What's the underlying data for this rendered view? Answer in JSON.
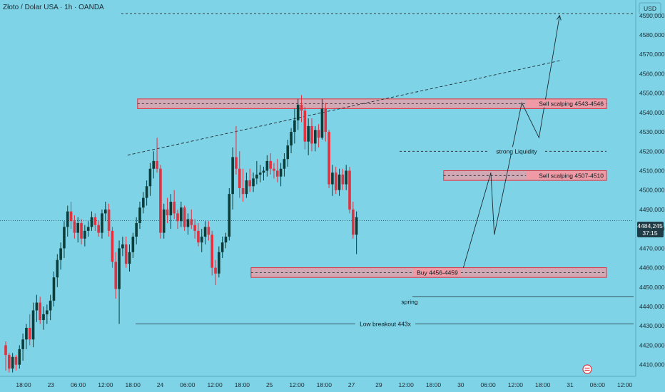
{
  "header": {
    "symbol_title": "Złoto / Dolar USA · 1h · OANDA",
    "currency": "USD"
  },
  "price_badge": {
    "price": "4484,245",
    "countdown": "37:15"
  },
  "colors": {
    "background": "#7fd3e6",
    "bull": "#0b3d3a",
    "bear": "#e2313f",
    "zone_fill": "#ef9aa4",
    "zone_stroke": "#e2313f",
    "annotation_line": "#1c2b33",
    "price_badge": "#1f3b45"
  },
  "chart_data": {
    "type": "candlestick",
    "title": "Złoto / Dolar USA · 1h · OANDA",
    "ylim": [
      4404,
      4598
    ],
    "y_ticks": [
      4410,
      4420,
      4430,
      4440,
      4450,
      4460,
      4470,
      4480,
      4490,
      4500,
      4510,
      4520,
      4530,
      4540,
      4550,
      4560,
      4570,
      4580,
      4590
    ],
    "y_tick_labels": [
      "4410,000",
      "4420,000",
      "4430,000",
      "4440,000",
      "4450,000",
      "4460,000",
      "4470,000",
      "4480,000",
      "4490,000",
      "4500,000",
      "4510,000",
      "4520,000",
      "4530,000",
      "4540,000",
      "4550,000",
      "4560,000",
      "4570,000",
      "4580,000",
      "4590,000"
    ],
    "x_tick_labels": [
      "18:00",
      "23",
      "06:00",
      "12:00",
      "18:00",
      "24",
      "06:00",
      "12:00",
      "18:00",
      "25",
      "12:00",
      "18:00",
      "27",
      "29",
      "12:00",
      "18:00",
      "30",
      "06:00",
      "12:00",
      "18:00",
      "31",
      "06:00",
      "12:00"
    ],
    "last_price": 4484.245,
    "candles": [
      [
        4420,
        4422,
        4407,
        4415
      ],
      [
        4415,
        4416,
        4406,
        4408
      ],
      [
        4408,
        4416,
        4406,
        4414
      ],
      [
        4414,
        4415,
        4407,
        4410
      ],
      [
        4410,
        4420,
        4408,
        4418
      ],
      [
        4418,
        4426,
        4412,
        4423
      ],
      [
        4423,
        4431,
        4418,
        4429
      ],
      [
        4429,
        4436,
        4420,
        4423
      ],
      [
        4423,
        4442,
        4419,
        4438
      ],
      [
        4438,
        4446,
        4432,
        4442
      ],
      [
        4442,
        4445,
        4431,
        4433
      ],
      [
        4433,
        4440,
        4428,
        4436
      ],
      [
        4436,
        4441,
        4431,
        4438
      ],
      [
        4438,
        4446,
        4433,
        4443
      ],
      [
        4443,
        4458,
        4440,
        4455
      ],
      [
        4455,
        4467,
        4450,
        4464
      ],
      [
        4464,
        4473,
        4459,
        4470
      ],
      [
        4470,
        4484,
        4465,
        4481
      ],
      [
        4481,
        4492,
        4476,
        4489
      ],
      [
        4489,
        4494,
        4480,
        4484
      ],
      [
        4484,
        4487,
        4475,
        4478
      ],
      [
        4478,
        4486,
        4473,
        4483
      ],
      [
        4483,
        4485,
        4472,
        4475
      ],
      [
        4475,
        4482,
        4471,
        4479
      ],
      [
        4479,
        4484,
        4476,
        4481
      ],
      [
        4481,
        4489,
        4479,
        4486
      ],
      [
        4486,
        4488,
        4479,
        4482
      ],
      [
        4482,
        4484,
        4476,
        4478
      ],
      [
        4478,
        4490,
        4475,
        4488
      ],
      [
        4488,
        4494,
        4484,
        4490
      ],
      [
        4490,
        4493,
        4476,
        4479
      ],
      [
        4479,
        4481,
        4460,
        4463
      ],
      [
        4463,
        4468,
        4444,
        4449
      ],
      [
        4449,
        4474,
        4431,
        4470
      ],
      [
        4470,
        4476,
        4466,
        4472
      ],
      [
        4472,
        4476,
        4460,
        4462
      ],
      [
        4462,
        4472,
        4458,
        4468
      ],
      [
        4468,
        4478,
        4465,
        4476
      ],
      [
        4476,
        4486,
        4472,
        4483
      ],
      [
        4483,
        4494,
        4480,
        4491
      ],
      [
        4491,
        4499,
        4488,
        4496
      ],
      [
        4496,
        4505,
        4492,
        4502
      ],
      [
        4502,
        4514,
        4497,
        4511
      ],
      [
        4511,
        4520,
        4506,
        4515
      ],
      [
        4515,
        4527,
        4509,
        4511
      ],
      [
        4511,
        4513,
        4475,
        4478
      ],
      [
        4478,
        4493,
        4475,
        4490
      ],
      [
        4490,
        4496,
        4483,
        4487
      ],
      [
        4487,
        4498,
        4480,
        4494
      ],
      [
        4494,
        4500,
        4485,
        4488
      ],
      [
        4488,
        4490,
        4480,
        4484
      ],
      [
        4484,
        4494,
        4481,
        4491
      ],
      [
        4491,
        4492,
        4479,
        4481
      ],
      [
        4481,
        4488,
        4477,
        4485
      ],
      [
        4485,
        4490,
        4480,
        4482
      ],
      [
        4482,
        4485,
        4475,
        4479
      ],
      [
        4479,
        4483,
        4471,
        4473
      ],
      [
        4473,
        4480,
        4468,
        4476
      ],
      [
        4476,
        4484,
        4472,
        4481
      ],
      [
        4481,
        4484,
        4474,
        4477
      ],
      [
        4477,
        4479,
        4456,
        4460
      ],
      [
        4460,
        4464,
        4451,
        4457
      ],
      [
        4457,
        4471,
        4455,
        4468
      ],
      [
        4468,
        4476,
        4465,
        4473
      ],
      [
        4473,
        4478,
        4470,
        4476
      ],
      [
        4476,
        4501,
        4474,
        4498
      ],
      [
        4498,
        4522,
        4490,
        4517
      ],
      [
        4517,
        4533,
        4508,
        4511
      ],
      [
        4511,
        4520,
        4496,
        4501
      ],
      [
        4501,
        4511,
        4494,
        4498
      ],
      [
        4498,
        4509,
        4496,
        4505
      ],
      [
        4505,
        4511,
        4499,
        4502
      ],
      [
        4502,
        4509,
        4499,
        4506
      ],
      [
        4506,
        4515,
        4503,
        4508
      ],
      [
        4508,
        4513,
        4504,
        4509
      ],
      [
        4509,
        4512,
        4505,
        4510
      ],
      [
        4510,
        4518,
        4507,
        4515
      ],
      [
        4515,
        4519,
        4508,
        4511
      ],
      [
        4511,
        4514,
        4506,
        4510
      ],
      [
        4510,
        4516,
        4504,
        4507
      ],
      [
        4507,
        4514,
        4502,
        4511
      ],
      [
        4511,
        4519,
        4507,
        4516
      ],
      [
        4516,
        4526,
        4512,
        4523
      ],
      [
        4523,
        4532,
        4519,
        4530
      ],
      [
        4530,
        4542,
        4524,
        4536
      ],
      [
        4536,
        4547,
        4531,
        4544
      ],
      [
        4544,
        4549,
        4535,
        4541
      ],
      [
        4541,
        4543,
        4521,
        4525
      ],
      [
        4525,
        4537,
        4518,
        4533
      ],
      [
        4533,
        4537,
        4520,
        4524
      ],
      [
        4524,
        4533,
        4520,
        4531
      ],
      [
        4531,
        4534,
        4522,
        4527
      ],
      [
        4527,
        4547,
        4526,
        4542
      ],
      [
        4542,
        4545,
        4525,
        4530
      ],
      [
        4530,
        4531,
        4501,
        4503
      ],
      [
        4503,
        4513,
        4497,
        4509
      ],
      [
        4509,
        4512,
        4498,
        4500
      ],
      [
        4500,
        4511,
        4497,
        4508
      ],
      [
        4508,
        4511,
        4500,
        4503
      ],
      [
        4503,
        4513,
        4500,
        4510
      ],
      [
        4510,
        4512,
        4488,
        4490
      ],
      [
        4490,
        4494,
        4475,
        4477
      ],
      [
        4477,
        4489,
        4467,
        4486
      ]
    ],
    "zones": [
      {
        "label": "Sell scalping 4543-4546",
        "low": 4542,
        "high": 4547,
        "x_start_index": 40,
        "x_end_index": 186
      },
      {
        "label": "Sell scalping 4507-4510",
        "low": 4505,
        "high": 4510,
        "x_start_index": 129,
        "x_end_index": 186
      },
      {
        "label": "Buy 4456-4459",
        "low": 4455,
        "high": 4460,
        "x_start_index": 73,
        "x_end_index": 186
      }
    ],
    "levels": [
      {
        "label": "strong Liquidity",
        "value": 4520
      },
      {
        "label": "spring",
        "value": 4445
      },
      {
        "label": "Low breakout 443x",
        "value": 4431
      },
      {
        "label": "",
        "value": 4591
      }
    ],
    "trendline": {
      "from": [
        40,
        4518
      ],
      "to": [
        180,
        4567
      ]
    },
    "projection_path": [
      [
        148,
        4460
      ],
      [
        156,
        4509
      ],
      [
        157,
        4477
      ],
      [
        165,
        4545
      ],
      [
        170,
        4527
      ],
      [
        176,
        4590
      ]
    ]
  }
}
